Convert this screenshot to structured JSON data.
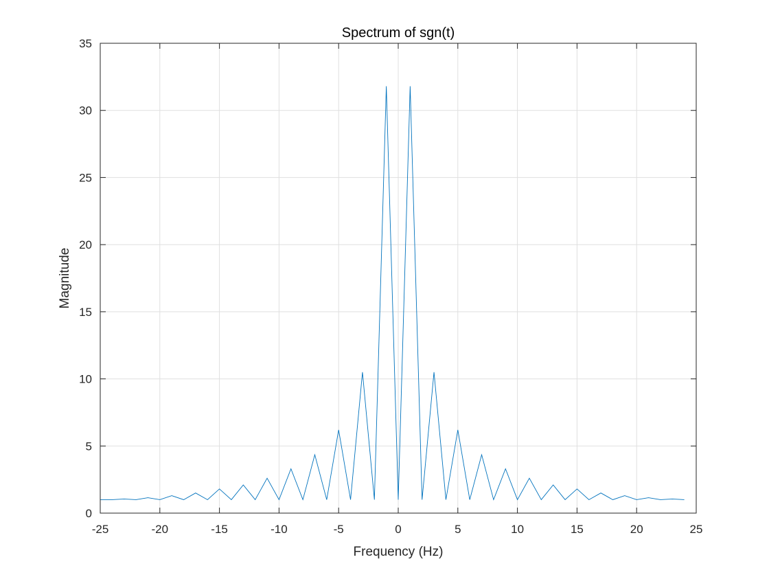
{
  "chart_data": {
    "type": "line",
    "title": "Spectrum of sgn(t)",
    "xlabel": "Frequency (Hz)",
    "ylabel": "Magnitude",
    "xlim": [
      -25,
      25
    ],
    "ylim": [
      0,
      35
    ],
    "xticks": [
      -25,
      -20,
      -15,
      -10,
      -5,
      0,
      5,
      10,
      15,
      20,
      25
    ],
    "yticks": [
      0,
      5,
      10,
      15,
      20,
      25,
      30,
      35
    ],
    "grid": true,
    "box": true,
    "series": [
      {
        "color": "#0072BD",
        "x": [
          -25,
          -24,
          -23,
          -22,
          -21,
          -20,
          -19,
          -18,
          -17,
          -16,
          -15,
          -14,
          -13,
          -12,
          -11,
          -10,
          -9,
          -8,
          -7,
          -6,
          -5,
          -4,
          -3,
          -2,
          -1,
          0,
          1,
          2,
          3,
          4,
          5,
          6,
          7,
          8,
          9,
          10,
          11,
          12,
          13,
          14,
          15,
          16,
          17,
          18,
          19,
          20,
          21,
          22,
          23,
          24
        ],
        "y": [
          1.0,
          1.0,
          1.05,
          1.0,
          1.15,
          1.0,
          1.3,
          1.0,
          1.5,
          1.0,
          1.8,
          1.0,
          2.1,
          1.0,
          2.6,
          1.0,
          3.3,
          1.0,
          4.35,
          1.0,
          6.2,
          1.0,
          10.5,
          1.0,
          31.8,
          1.0,
          31.8,
          1.0,
          10.5,
          1.0,
          6.2,
          1.0,
          4.35,
          1.0,
          3.3,
          1.0,
          2.6,
          1.0,
          2.1,
          1.0,
          1.8,
          1.0,
          1.5,
          1.0,
          1.3,
          1.0,
          1.15,
          1.0,
          1.05,
          1.0
        ]
      }
    ]
  }
}
